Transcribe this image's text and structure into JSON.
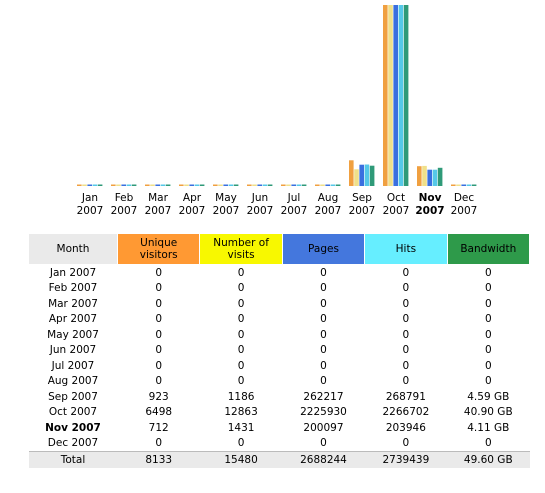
{
  "chart_data": {
    "type": "bar",
    "categories": [
      {
        "month": "Jan",
        "year": "2007",
        "current": false
      },
      {
        "month": "Feb",
        "year": "2007",
        "current": false
      },
      {
        "month": "Mar",
        "year": "2007",
        "current": false
      },
      {
        "month": "Apr",
        "year": "2007",
        "current": false
      },
      {
        "month": "May",
        "year": "2007",
        "current": false
      },
      {
        "month": "Jun",
        "year": "2007",
        "current": false
      },
      {
        "month": "Jul",
        "year": "2007",
        "current": false
      },
      {
        "month": "Aug",
        "year": "2007",
        "current": false
      },
      {
        "month": "Sep",
        "year": "2007",
        "current": false
      },
      {
        "month": "Oct",
        "year": "2007",
        "current": false
      },
      {
        "month": "Nov",
        "year": "2007",
        "current": true
      },
      {
        "month": "Dec",
        "year": "2007",
        "current": false
      }
    ],
    "series": [
      {
        "name": "Unique visitors",
        "color": "#f0a040",
        "values": [
          0,
          0,
          0,
          0,
          0,
          0,
          0,
          0,
          923,
          6498,
          712,
          0
        ]
      },
      {
        "name": "Number of visits",
        "color": "#f0e08a",
        "values": [
          0,
          0,
          0,
          0,
          0,
          0,
          0,
          0,
          1186,
          12863,
          1431,
          0
        ]
      },
      {
        "name": "Pages",
        "color": "#3a6fdf",
        "values": [
          0,
          0,
          0,
          0,
          0,
          0,
          0,
          0,
          262217,
          2225930,
          200097,
          0
        ]
      },
      {
        "name": "Hits",
        "color": "#55c8e8",
        "values": [
          0,
          0,
          0,
          0,
          0,
          0,
          0,
          0,
          268791,
          2266702,
          203946,
          0
        ]
      },
      {
        "name": "Bandwidth",
        "color": "#2f9a78",
        "values": [
          0,
          0,
          0,
          0,
          0,
          0,
          0,
          0,
          4.59,
          40.9,
          4.11,
          0
        ]
      }
    ]
  },
  "table": {
    "headers": {
      "month": "Month",
      "unique_visitors": "Unique visitors",
      "visits": "Number of visits",
      "pages": "Pages",
      "hits": "Hits",
      "bandwidth": "Bandwidth"
    },
    "header_colors": {
      "unique_visitors": "#ff9933",
      "visits": "#f8f800",
      "pages": "#4477dd",
      "hits": "#66eeff",
      "bandwidth": "#2e9a4a"
    },
    "rows": [
      {
        "month": "Jan 2007",
        "unique_visitors": "0",
        "visits": "0",
        "pages": "0",
        "hits": "0",
        "bandwidth": "0",
        "current": false
      },
      {
        "month": "Feb 2007",
        "unique_visitors": "0",
        "visits": "0",
        "pages": "0",
        "hits": "0",
        "bandwidth": "0",
        "current": false
      },
      {
        "month": "Mar 2007",
        "unique_visitors": "0",
        "visits": "0",
        "pages": "0",
        "hits": "0",
        "bandwidth": "0",
        "current": false
      },
      {
        "month": "Apr 2007",
        "unique_visitors": "0",
        "visits": "0",
        "pages": "0",
        "hits": "0",
        "bandwidth": "0",
        "current": false
      },
      {
        "month": "May 2007",
        "unique_visitors": "0",
        "visits": "0",
        "pages": "0",
        "hits": "0",
        "bandwidth": "0",
        "current": false
      },
      {
        "month": "Jun 2007",
        "unique_visitors": "0",
        "visits": "0",
        "pages": "0",
        "hits": "0",
        "bandwidth": "0",
        "current": false
      },
      {
        "month": "Jul 2007",
        "unique_visitors": "0",
        "visits": "0",
        "pages": "0",
        "hits": "0",
        "bandwidth": "0",
        "current": false
      },
      {
        "month": "Aug 2007",
        "unique_visitors": "0",
        "visits": "0",
        "pages": "0",
        "hits": "0",
        "bandwidth": "0",
        "current": false
      },
      {
        "month": "Sep 2007",
        "unique_visitors": "923",
        "visits": "1186",
        "pages": "262217",
        "hits": "268791",
        "bandwidth": "4.59 GB",
        "current": false
      },
      {
        "month": "Oct 2007",
        "unique_visitors": "6498",
        "visits": "12863",
        "pages": "2225930",
        "hits": "2266702",
        "bandwidth": "40.90 GB",
        "current": false
      },
      {
        "month": "Nov 2007",
        "unique_visitors": "712",
        "visits": "1431",
        "pages": "200097",
        "hits": "203946",
        "bandwidth": "4.11 GB",
        "current": true
      },
      {
        "month": "Dec 2007",
        "unique_visitors": "0",
        "visits": "0",
        "pages": "0",
        "hits": "0",
        "bandwidth": "0",
        "current": false
      }
    ],
    "total": {
      "month": "Total",
      "unique_visitors": "8133",
      "visits": "15480",
      "pages": "2688244",
      "hits": "2739439",
      "bandwidth": "49.60 GB"
    }
  }
}
